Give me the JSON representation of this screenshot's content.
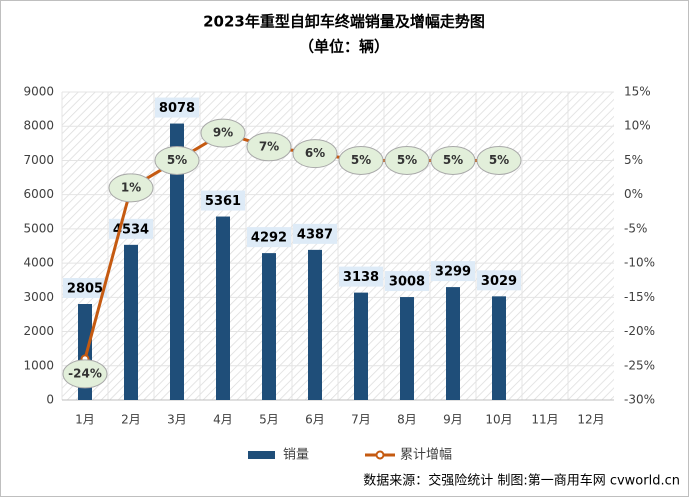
{
  "chart_data": {
    "type": "bar",
    "title": "2023年重型自卸车终端销量及增幅走势图",
    "subtitle": "（单位：辆）",
    "categories": [
      "1月",
      "2月",
      "3月",
      "4月",
      "5月",
      "6月",
      "7月",
      "8月",
      "9月",
      "10月",
      "11月",
      "12月"
    ],
    "series": [
      {
        "name": "销量",
        "type": "bar",
        "color": "#1f4e79",
        "values": [
          2805,
          4534,
          8078,
          5361,
          4292,
          4387,
          3138,
          3008,
          3299,
          3029,
          null,
          null
        ]
      },
      {
        "name": "累计增幅",
        "type": "line",
        "axis": "y2",
        "color": "#c55a11",
        "values": [
          -24,
          1,
          5,
          9,
          7,
          6,
          5,
          5,
          5,
          5,
          null,
          null
        ],
        "value_labels": [
          "-24%",
          "1%",
          "5%",
          "9%",
          "7%",
          "6%",
          "5%",
          "5%",
          "5%",
          "5%",
          null,
          null
        ]
      }
    ],
    "ylim": [
      0,
      9000
    ],
    "yticks": [
      0,
      1000,
      2000,
      3000,
      4000,
      5000,
      6000,
      7000,
      8000,
      9000
    ],
    "y2lim": [
      -30,
      15
    ],
    "y2ticks": [
      {
        "value": -30,
        "label": "-30%"
      },
      {
        "value": -25,
        "label": "-25%"
      },
      {
        "value": -20,
        "label": "-20%"
      },
      {
        "value": -15,
        "label": "-15%"
      },
      {
        "value": -10,
        "label": "-10%"
      },
      {
        "value": -5,
        "label": "-5%"
      },
      {
        "value": 0,
        "label": "0%"
      },
      {
        "value": 5,
        "label": "5%"
      },
      {
        "value": 10,
        "label": "10%"
      },
      {
        "value": 15,
        "label": "15%"
      }
    ],
    "grid": true,
    "legend": "bottom",
    "source": "数据来源：交强险统计  制图:第一商用车网 cvworld.cn"
  }
}
